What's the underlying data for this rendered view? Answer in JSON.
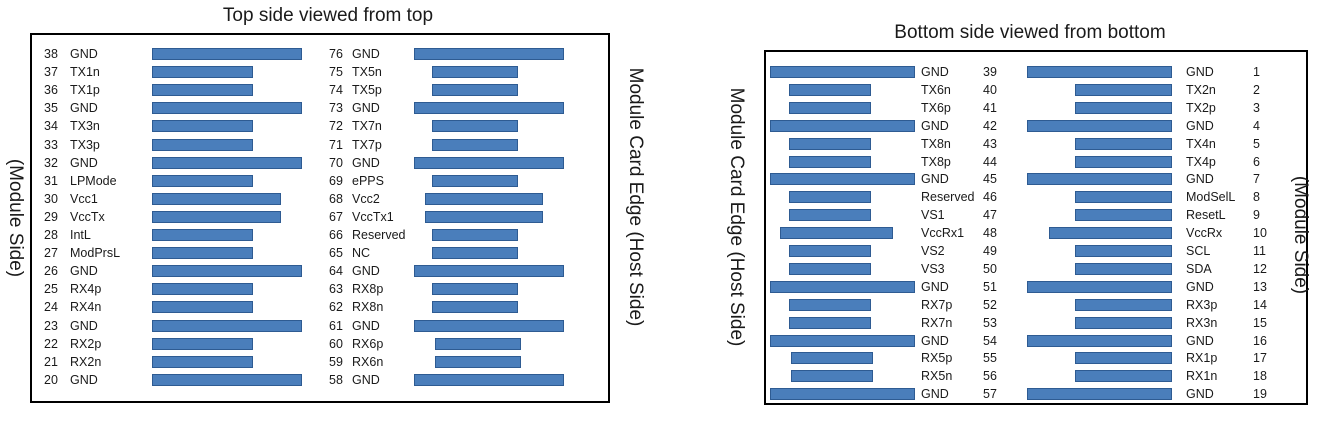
{
  "top_panel": {
    "title": "Top side viewed from top",
    "left_label": "(Module Side)",
    "right_label": "Module Card Edge (Host Side)",
    "left_column": [
      {
        "num": "38",
        "name": "GND"
      },
      {
        "num": "37",
        "name": "TX1n"
      },
      {
        "num": "36",
        "name": "TX1p"
      },
      {
        "num": "35",
        "name": "GND"
      },
      {
        "num": "34",
        "name": "TX3n"
      },
      {
        "num": "33",
        "name": "TX3p"
      },
      {
        "num": "32",
        "name": "GND"
      },
      {
        "num": "31",
        "name": "LPMode"
      },
      {
        "num": "30",
        "name": "Vcc1"
      },
      {
        "num": "29",
        "name": "VccTx"
      },
      {
        "num": "28",
        "name": "IntL"
      },
      {
        "num": "27",
        "name": "ModPrsL"
      },
      {
        "num": "26",
        "name": "GND"
      },
      {
        "num": "25",
        "name": "RX4p"
      },
      {
        "num": "24",
        "name": "RX4n"
      },
      {
        "num": "23",
        "name": "GND"
      },
      {
        "num": "22",
        "name": "RX2p"
      },
      {
        "num": "21",
        "name": "RX2n"
      },
      {
        "num": "20",
        "name": "GND"
      }
    ],
    "right_column": [
      {
        "num": "76",
        "name": "GND"
      },
      {
        "num": "75",
        "name": "TX5n"
      },
      {
        "num": "74",
        "name": "TX5p"
      },
      {
        "num": "73",
        "name": "GND"
      },
      {
        "num": "72",
        "name": "TX7n"
      },
      {
        "num": "71",
        "name": "TX7p"
      },
      {
        "num": "70",
        "name": "GND"
      },
      {
        "num": "69",
        "name": "ePPS"
      },
      {
        "num": "68",
        "name": "Vcc2"
      },
      {
        "num": "67",
        "name": "VccTx1"
      },
      {
        "num": "66",
        "name": "Reserved"
      },
      {
        "num": "65",
        "name": "NC"
      },
      {
        "num": "64",
        "name": "GND"
      },
      {
        "num": "63",
        "name": "RX8p"
      },
      {
        "num": "62",
        "name": "RX8n"
      },
      {
        "num": "61",
        "name": "GND"
      },
      {
        "num": "60",
        "name": "RX6p"
      },
      {
        "num": "59",
        "name": "RX6n"
      },
      {
        "num": "58",
        "name": "GND"
      }
    ]
  },
  "bottom_panel": {
    "title": "Bottom side viewed from bottom",
    "left_label": "Module Card Edge (Host Side)",
    "right_label": "(Module Side)",
    "left_column": [
      {
        "num": "39",
        "name": "GND"
      },
      {
        "num": "40",
        "name": "TX6n"
      },
      {
        "num": "41",
        "name": "TX6p"
      },
      {
        "num": "42",
        "name": "GND"
      },
      {
        "num": "43",
        "name": "TX8n"
      },
      {
        "num": "44",
        "name": "TX8p"
      },
      {
        "num": "45",
        "name": "GND"
      },
      {
        "num": "46",
        "name": "Reserved"
      },
      {
        "num": "47",
        "name": "VS1"
      },
      {
        "num": "48",
        "name": "VccRx1"
      },
      {
        "num": "49",
        "name": "VS2"
      },
      {
        "num": "50",
        "name": "VS3"
      },
      {
        "num": "51",
        "name": "GND"
      },
      {
        "num": "52",
        "name": "RX7p"
      },
      {
        "num": "53",
        "name": "RX7n"
      },
      {
        "num": "54",
        "name": "GND"
      },
      {
        "num": "55",
        "name": "RX5p"
      },
      {
        "num": "56",
        "name": "RX5n"
      },
      {
        "num": "57",
        "name": "GND"
      }
    ],
    "right_column": [
      {
        "num": "1",
        "name": "GND"
      },
      {
        "num": "2",
        "name": "TX2n"
      },
      {
        "num": "3",
        "name": "TX2p"
      },
      {
        "num": "4",
        "name": "GND"
      },
      {
        "num": "5",
        "name": "TX4n"
      },
      {
        "num": "6",
        "name": "TX4p"
      },
      {
        "num": "7",
        "name": "GND"
      },
      {
        "num": "8",
        "name": "ModSelL"
      },
      {
        "num": "9",
        "name": "ResetL"
      },
      {
        "num": "10",
        "name": "VccRx"
      },
      {
        "num": "11",
        "name": "SCL"
      },
      {
        "num": "12",
        "name": "SDA"
      },
      {
        "num": "13",
        "name": "GND"
      },
      {
        "num": "14",
        "name": "RX3p"
      },
      {
        "num": "15",
        "name": "RX3n"
      },
      {
        "num": "16",
        "name": "GND"
      },
      {
        "num": "17",
        "name": "RX1p"
      },
      {
        "num": "18",
        "name": "RX1n"
      },
      {
        "num": "19",
        "name": "GND"
      }
    ]
  }
}
